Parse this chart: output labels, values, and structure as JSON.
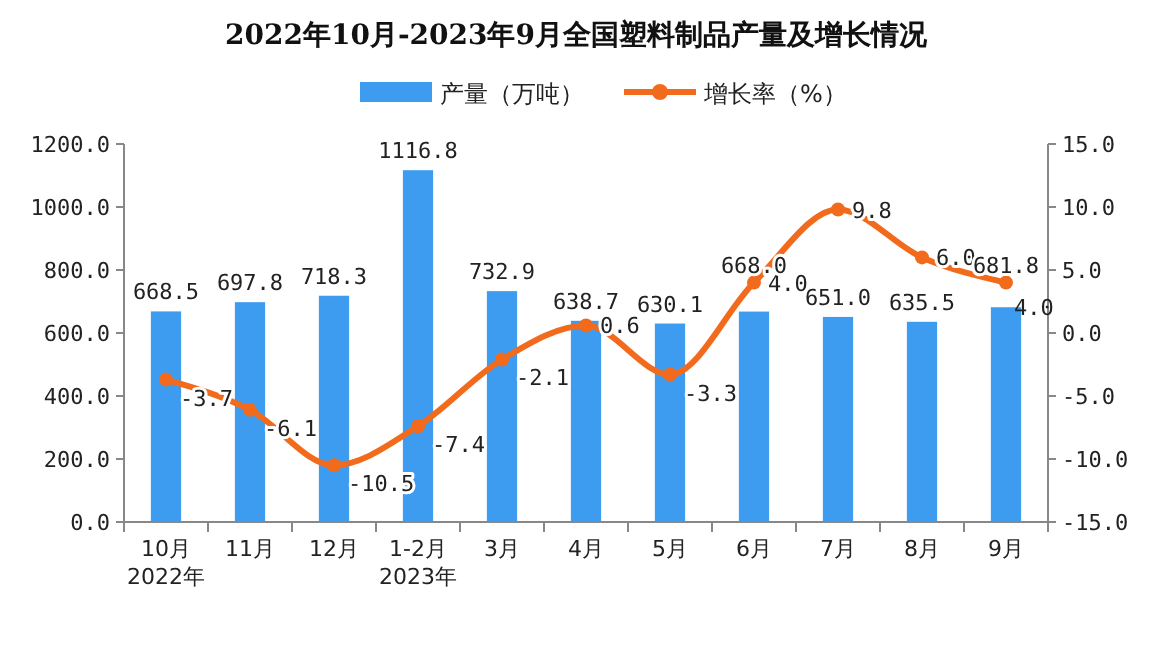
{
  "chart_data": {
    "type": "bar",
    "title": "2022年10月-2023年9月全国塑料制品产量及增长情况",
    "categories": [
      "10月\n2022年",
      "11月",
      "12月",
      "1-2月\n2023年",
      "3月",
      "4月",
      "5月",
      "6月",
      "7月",
      "8月",
      "9月"
    ],
    "series": [
      {
        "name": "产量（万吨）",
        "color": "#3d9bf0",
        "values": [
          668.5,
          697.8,
          718.3,
          1116.8,
          732.9,
          638.7,
          630.1,
          668.0,
          651.0,
          635.5,
          681.8
        ],
        "value_labels": [
          "668.5",
          "697.8",
          "718.3",
          "1116.8",
          "732.9",
          "638.7",
          "630.1",
          "668.0",
          "651.0",
          "635.5",
          "681.8"
        ]
      },
      {
        "name": "增长率（%）",
        "type": "line",
        "axis": "y2",
        "color": "#f26b1d",
        "values": [
          -3.7,
          -6.1,
          -10.5,
          -7.4,
          -2.1,
          0.6,
          -3.3,
          4.0,
          9.8,
          6.0,
          4.0
        ],
        "value_labels": [
          "-3.7",
          "-6.1",
          "-10.5",
          "-7.4",
          "-2.1",
          "0.6",
          "-3.3",
          "4.0",
          "9.8",
          "6.0",
          "4.0"
        ]
      }
    ],
    "ylim": [
      0,
      1200
    ],
    "yticks": [
      {
        "value": 0,
        "label": "0.0"
      },
      {
        "value": 200,
        "label": "200.0"
      },
      {
        "value": 400,
        "label": "400.0"
      },
      {
        "value": 600,
        "label": "600.0"
      },
      {
        "value": 800,
        "label": "800.0"
      },
      {
        "value": 1000,
        "label": "1000.0"
      },
      {
        "value": 1200,
        "label": "1200.0"
      }
    ],
    "y2lim": [
      -15,
      15
    ],
    "y2ticks": [
      {
        "value": -15,
        "label": "-15.0"
      },
      {
        "value": -10,
        "label": "-10.0"
      },
      {
        "value": -5,
        "label": "-5.0"
      },
      {
        "value": 0,
        "label": "0.0"
      },
      {
        "value": 5,
        "label": "5.0"
      },
      {
        "value": 10,
        "label": "10.0"
      },
      {
        "value": 15,
        "label": "15.0"
      }
    ],
    "legend": "top",
    "grid": false,
    "marker": "circle",
    "line_style": "solid"
  }
}
